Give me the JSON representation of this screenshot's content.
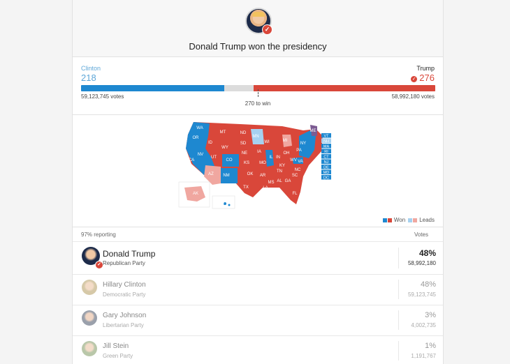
{
  "header": {
    "title": "Donald Trump won the presidency"
  },
  "tally": {
    "left_name": "Clinton",
    "left_ev": "218",
    "left_votes": "59,123,745 votes",
    "right_name": "Trump",
    "right_ev": "276",
    "right_votes": "58,992,180 votes",
    "threshold": "270 to win",
    "bar": {
      "dem_ev": 218,
      "rep_ev": 276,
      "total_ev": 538
    }
  },
  "map": {
    "state_labels": [
      "WA",
      "OR",
      "CA",
      "NV",
      "ID",
      "MT",
      "WY",
      "UT",
      "AZ",
      "CO",
      "NM",
      "ND",
      "SD",
      "NE",
      "KS",
      "OK",
      "TX",
      "MN",
      "IA",
      "MO",
      "AR",
      "LA",
      "WI",
      "IL",
      "MI",
      "IN",
      "OH",
      "KY",
      "TN",
      "MS",
      "AL",
      "GA",
      "FL",
      "SC",
      "NC",
      "VA",
      "WV",
      "PA",
      "NY",
      "ME",
      "AK",
      "HI"
    ],
    "small_states": [
      "VT",
      "NH",
      "MA",
      "RI",
      "CT",
      "NJ",
      "DE",
      "MD",
      "DC"
    ],
    "legend": {
      "won": "Won",
      "leads": "Leads"
    },
    "colors": {
      "dem": "#1e88d0",
      "rep": "#d9473a",
      "dem_lead": "#a6d1f0",
      "rep_lead": "#f0a7a0",
      "split": "#7c5b92"
    }
  },
  "results": {
    "reporting": "97% reporting",
    "votes_header": "Votes",
    "candidates": [
      {
        "name": "Donald Trump",
        "party": "Republican Party",
        "pct": "48%",
        "votes": "58,992,180"
      },
      {
        "name": "Hillary Clinton",
        "party": "Democratic Party",
        "pct": "48%",
        "votes": "59,123,745"
      },
      {
        "name": "Gary Johnson",
        "party": "Libertarian Party",
        "pct": "3%",
        "votes": "4,002,735"
      },
      {
        "name": "Jill Stein",
        "party": "Green Party",
        "pct": "1%",
        "votes": "1,191,767"
      }
    ]
  }
}
